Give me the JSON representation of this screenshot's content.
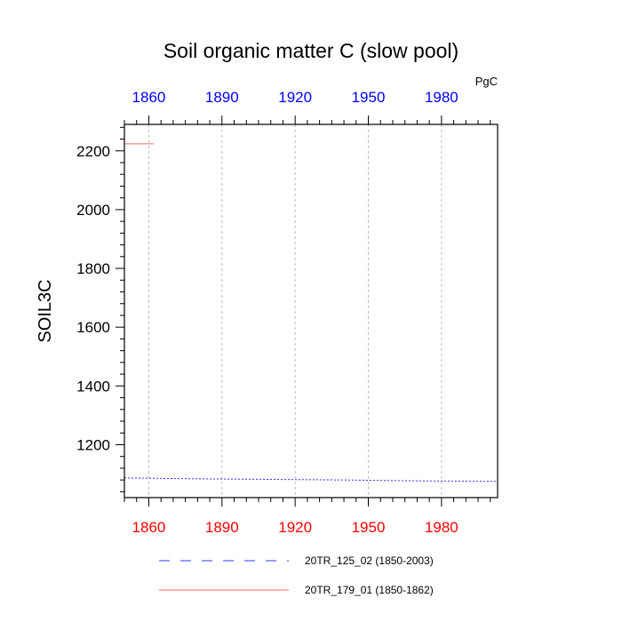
{
  "chart_data": {
    "type": "line",
    "title": "Soil organic matter C (slow pool)",
    "units": "PgC",
    "ylabel": "SOIL3C",
    "xlabel": "",
    "xlim": [
      1850,
      2003
    ],
    "ylim": [
      1020,
      2290
    ],
    "x_ticks": [
      1860,
      1890,
      1920,
      1950,
      1980
    ],
    "x_tick_labels": [
      "1860",
      "1890",
      "1920",
      "1950",
      "1980"
    ],
    "top_x_tick_labels": [
      "1860",
      "1890",
      "1920",
      "1950",
      "1980"
    ],
    "y_ticks": [
      1200,
      1400,
      1600,
      1800,
      2000,
      2200
    ],
    "y_tick_labels": [
      "1200",
      "1400",
      "1600",
      "1800",
      "2000",
      "2200"
    ],
    "grid": "vertical dashed at x ticks",
    "colors": {
      "bottom_tick_labels": "#ff0000",
      "top_tick_labels": "#0000ff",
      "grid": "#bbbbbb",
      "axis": "#000000"
    },
    "series": [
      {
        "name": "20TR_125_02 (1850-2003)",
        "color": "#3333ff",
        "style": "dashed",
        "x": [
          1850,
          1880,
          1910,
          1940,
          1970,
          2003
        ],
        "values": [
          1087,
          1084,
          1082,
          1080,
          1077,
          1075
        ]
      },
      {
        "name": "20TR_179_01 (1850-1862)",
        "color": "#ff6666",
        "style": "solid",
        "x": [
          1850,
          1856,
          1862
        ],
        "values": [
          2224,
          2224,
          2224
        ]
      }
    ]
  }
}
